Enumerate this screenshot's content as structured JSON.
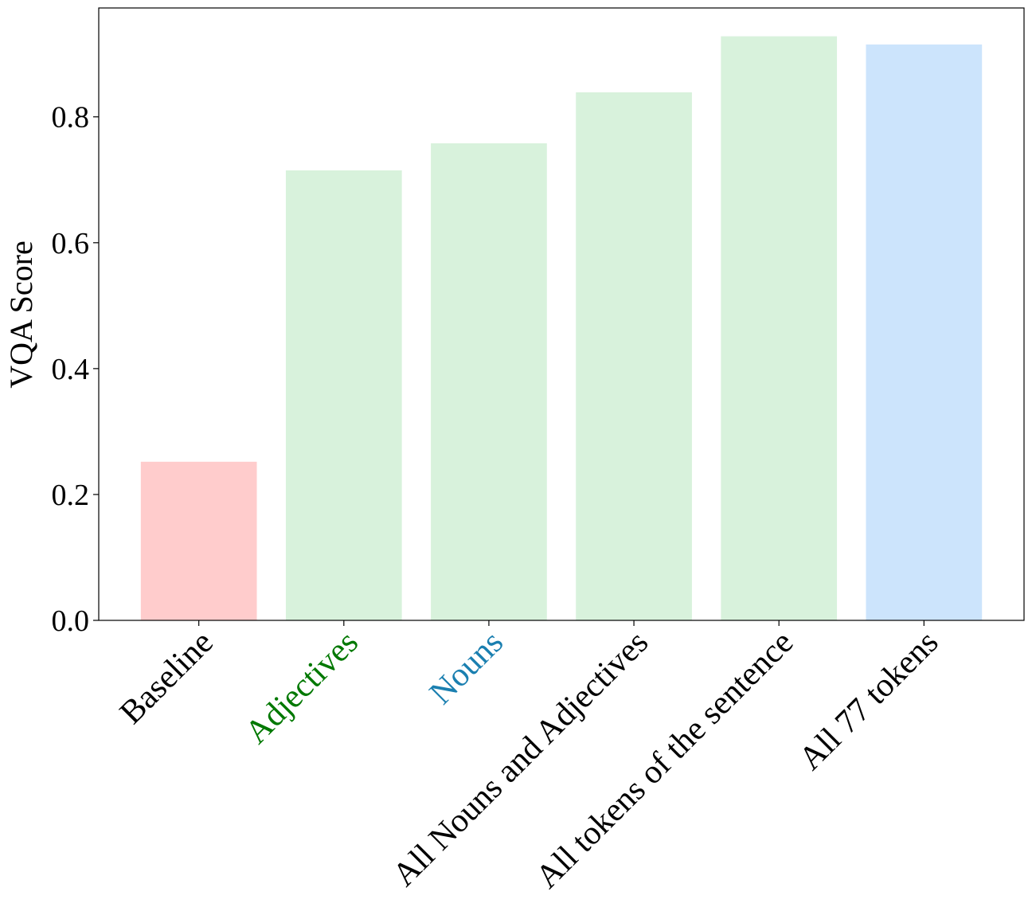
{
  "chart_data": {
    "type": "bar",
    "y_label": "VQA Score",
    "categories": [
      "Baseline",
      "Adjectives",
      "Nouns",
      "All Nouns and Adjectives",
      "All tokens of the sentence",
      "All 77 tokens"
    ],
    "values": [
      0.252,
      0.715,
      0.758,
      0.839,
      0.928,
      0.915
    ],
    "colors": [
      "#ffcccc",
      "#d8f2dc",
      "#d8f2dc",
      "#d8f2dc",
      "#d8f2dc",
      "#cce4fc"
    ],
    "category_colors": [
      "#000000",
      "#007800",
      "#1a7fb0",
      "#000000",
      "#000000",
      "#000000"
    ],
    "ylim": [
      0,
      0.973
    ],
    "yticks": [
      {
        "value": 0,
        "label": "0.0"
      },
      0.2,
      0.4,
      0.6,
      0.8
    ]
  }
}
